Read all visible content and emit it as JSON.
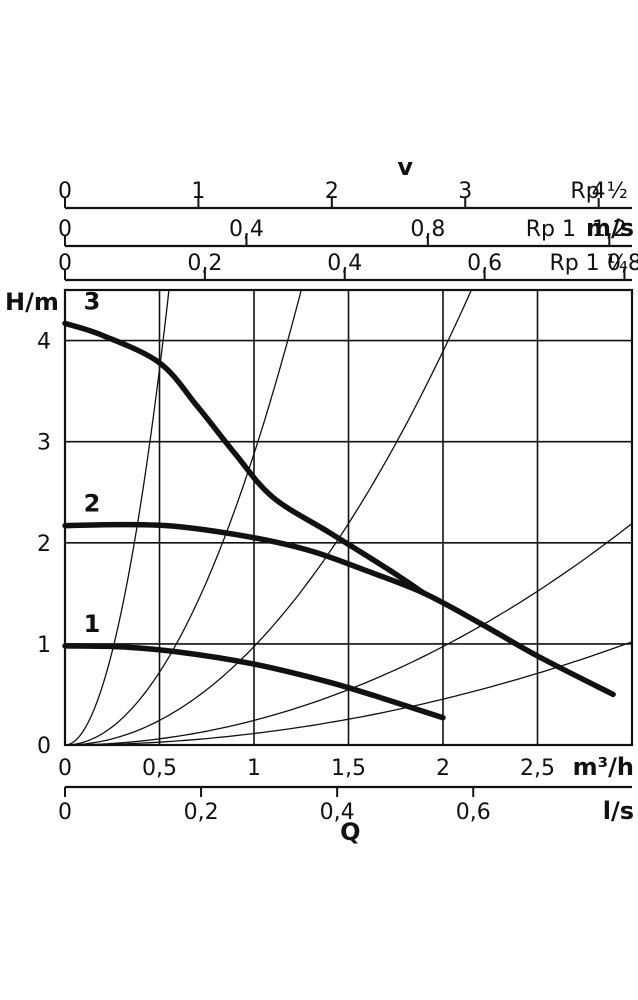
{
  "chart_data": {
    "type": "line",
    "title": "",
    "xlabel": "Q",
    "ylabel": "H/m",
    "x_unit": "m³/h",
    "ylim": [
      0,
      4.5
    ],
    "xlim": [
      0,
      3
    ],
    "grid": true,
    "x_ticks": [
      0,
      0.5,
      1,
      1.5,
      2,
      2.5
    ],
    "x_tick_labels": [
      "0",
      "0,5",
      "1",
      "1,5",
      "2",
      "2,5"
    ],
    "y_ticks": [
      0,
      1,
      2,
      3,
      4
    ],
    "y_tick_labels": [
      "0",
      "1",
      "2",
      "3",
      "4"
    ],
    "secondary_axes": [
      {
        "id": "ls",
        "position": "bottom",
        "label": "l/s",
        "label_bold": true,
        "unit_factor_to_x": 3.6,
        "ticks": [
          0,
          0.2,
          0.4,
          0.6
        ],
        "tick_labels": [
          "0",
          "0,2",
          "0,4",
          "0,6"
        ]
      },
      {
        "id": "rp_half",
        "position": "top",
        "row": 1,
        "label": "Rp ½",
        "label_bold": false,
        "unit_factor_to_x": 0.7059,
        "ticks": [
          0,
          1,
          2,
          3,
          4
        ],
        "tick_labels": [
          "0",
          "1",
          "2",
          "3",
          "4"
        ]
      },
      {
        "id": "rp_1",
        "position": "top",
        "row": 2,
        "label": "Rp 1",
        "label_bold": false,
        "extra_label": "m/s",
        "unit_factor_to_x": 2.4,
        "ticks": [
          0,
          0.4,
          0.8,
          1.2
        ],
        "tick_labels": [
          "0",
          "0,4",
          "0,8",
          "1,2"
        ]
      },
      {
        "id": "rp_1_quarter",
        "position": "top",
        "row": 3,
        "label": "Rp 1 ¼",
        "label_bold": false,
        "unit_factor_to_x": 3.7,
        "ticks": [
          0,
          0.2,
          0.4,
          0.6,
          0.8
        ],
        "tick_labels": [
          "0",
          "0,2",
          "0,4",
          "0,6",
          "0,8"
        ]
      }
    ],
    "top_title": "v",
    "series": [
      {
        "name": "1",
        "x": [
          0,
          0.3,
          0.6,
          1.0,
          1.4,
          1.7,
          2.0
        ],
        "y": [
          0.98,
          0.97,
          0.92,
          0.8,
          0.62,
          0.45,
          0.27
        ]
      },
      {
        "name": "2",
        "x": [
          0,
          0.3,
          0.6,
          1.0,
          1.3,
          1.6,
          1.9,
          2.2,
          2.5,
          2.9
        ],
        "y": [
          2.17,
          2.18,
          2.16,
          2.05,
          1.92,
          1.72,
          1.5,
          1.2,
          0.88,
          0.5
        ]
      },
      {
        "name": "3",
        "x": [
          0,
          0.2,
          0.5,
          0.7,
          0.9,
          1.1,
          1.4,
          1.7,
          1.9
        ],
        "y": [
          4.17,
          4.05,
          3.78,
          3.35,
          2.88,
          2.45,
          2.1,
          1.75,
          1.5
        ]
      }
    ],
    "system_curves_at_y4_5": [
      0.55,
      1.25,
      2.15,
      4.3,
      6.3
    ],
    "system_curve_max_x": 3.0
  }
}
